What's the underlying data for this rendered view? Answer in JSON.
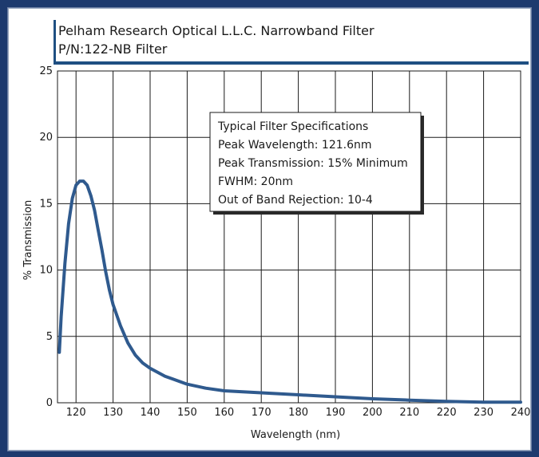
{
  "chart_data": {
    "type": "line",
    "title": "Pelham Research Optical L.L.C. Narrowband Filter",
    "subtitle": "P/N:122-NB Filter",
    "xlabel": "Wavelength (nm)",
    "ylabel": "% Transmission",
    "xlim": [
      115,
      240
    ],
    "ylim": [
      0,
      25
    ],
    "xticks": [
      120,
      130,
      140,
      150,
      160,
      170,
      180,
      190,
      200,
      210,
      220,
      230,
      240
    ],
    "yticks": [
      0,
      5,
      10,
      15,
      20,
      25
    ],
    "grid": true,
    "series": [
      {
        "x": [
          115.5,
          116,
          117,
          118,
          119,
          120,
          121,
          122,
          123,
          124,
          125,
          126,
          127,
          128,
          129,
          130,
          132,
          134,
          136,
          138,
          140,
          142,
          144,
          146,
          150,
          155,
          160,
          170,
          180,
          190,
          200,
          210,
          220,
          230,
          240
        ],
        "y": [
          3.8,
          6.5,
          10.5,
          13.5,
          15.4,
          16.4,
          16.7,
          16.7,
          16.4,
          15.6,
          14.5,
          13.0,
          11.5,
          9.9,
          8.5,
          7.4,
          5.8,
          4.5,
          3.6,
          3.0,
          2.6,
          2.3,
          2.0,
          1.8,
          1.4,
          1.1,
          0.9,
          0.75,
          0.6,
          0.45,
          0.3,
          0.2,
          0.1,
          0.05,
          0.05
        ]
      }
    ],
    "annotation_box": {
      "lines": [
        "Typical Filter Specifications",
        "Peak Wavelength: 121.6nm",
        "Peak Transmission: 15% Minimum",
        "FWHM: 20nm",
        "Out of Band Rejection: 10-4"
      ]
    }
  },
  "colors": {
    "line": "#2f5a8e",
    "accent": "#1f4f82",
    "background": "#1d3a6e",
    "grid": "#1a1a1a"
  }
}
